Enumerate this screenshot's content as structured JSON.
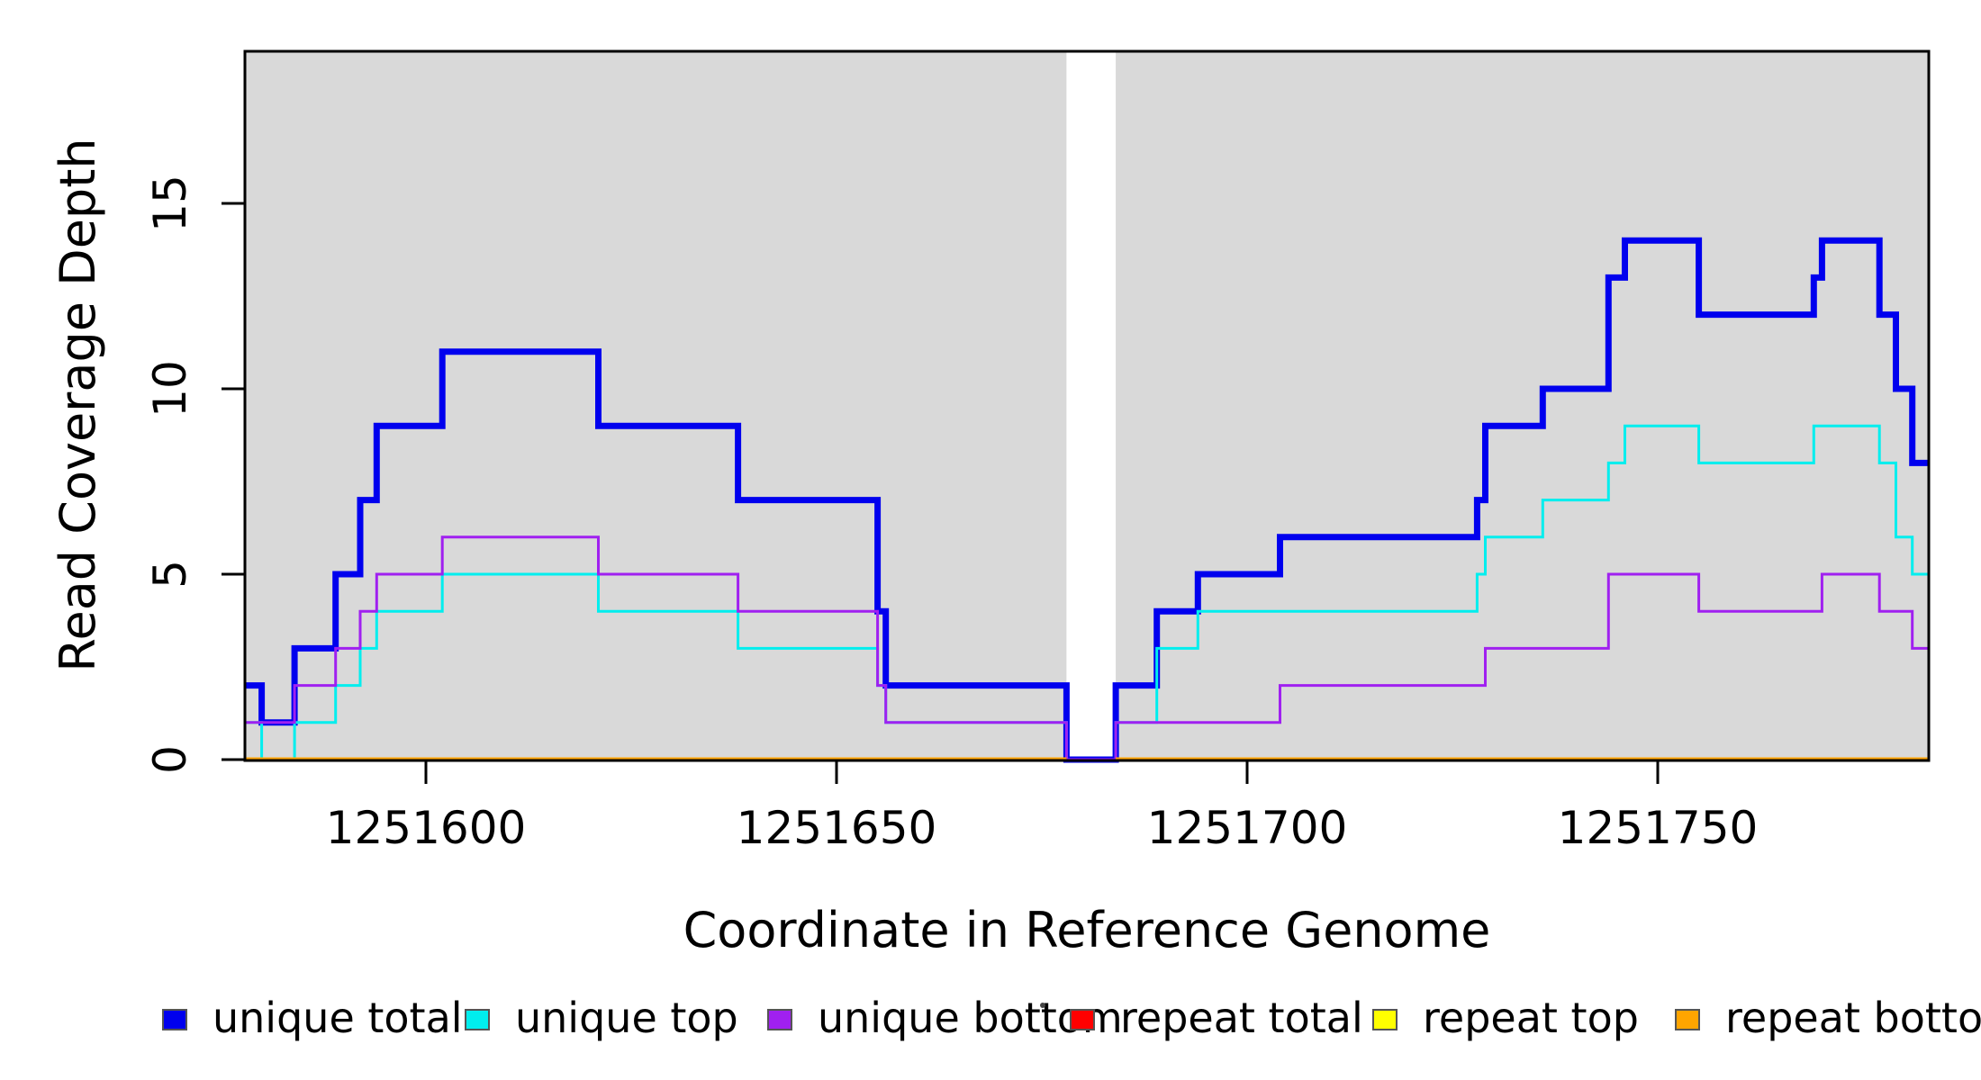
{
  "figure": {
    "background": "#FFFFFF",
    "panel_background": "#D9D9D9",
    "axis_color": "#000000",
    "tick_label_color": "#000000"
  },
  "chart_data": {
    "type": "line",
    "subtype": "step",
    "title": "",
    "xlabel": "Coordinate in Reference Genome",
    "ylabel": "Read Coverage Depth",
    "xlim": [
      1251578,
      1251783
    ],
    "ylim": [
      0,
      19.1
    ],
    "x_ticks": [
      1251600,
      1251650,
      1251700,
      1251750
    ],
    "y_ticks": [
      0,
      5,
      10,
      15
    ],
    "grid": false,
    "legend_position": "bottom",
    "gap_region": {
      "x_start": 1251678,
      "x_end": 1251684,
      "color": "#FFFFFF"
    },
    "series": [
      {
        "name": "unique total",
        "color": "#0000EE",
        "line_width": 7,
        "segments": [
          {
            "steps": [
              [
                1251578,
                2
              ],
              [
                1251580,
                1
              ],
              [
                1251584,
                3
              ],
              [
                1251589,
                5
              ],
              [
                1251592,
                7
              ],
              [
                1251594,
                9
              ],
              [
                1251602,
                11
              ],
              [
                1251621,
                9
              ],
              [
                1251638,
                7
              ],
              [
                1251655,
                4
              ],
              [
                1251656,
                2
              ],
              [
                1251678,
                0
              ],
              [
                1251684,
                2
              ],
              [
                1251689,
                4
              ],
              [
                1251694,
                5
              ],
              [
                1251704,
                6
              ],
              [
                1251728,
                7
              ],
              [
                1251729,
                9
              ],
              [
                1251736,
                10
              ],
              [
                1251744,
                13
              ],
              [
                1251746,
                14
              ],
              [
                1251755,
                12
              ],
              [
                1251769,
                13
              ],
              [
                1251770,
                14
              ],
              [
                1251777,
                12
              ],
              [
                1251779,
                10
              ],
              [
                1251781,
                8
              ]
            ],
            "x_end": 1251783
          }
        ]
      },
      {
        "name": "unique top",
        "color": "#00EEEE",
        "line_width": 3,
        "segments": [
          {
            "steps": [
              [
                1251578,
                1
              ],
              [
                1251580,
                0
              ],
              [
                1251584,
                1
              ],
              [
                1251589,
                2
              ],
              [
                1251592,
                3
              ],
              [
                1251594,
                4
              ],
              [
                1251602,
                5
              ],
              [
                1251621,
                4
              ],
              [
                1251638,
                3
              ],
              [
                1251655,
                2
              ],
              [
                1251656,
                1
              ],
              [
                1251678,
                0
              ],
              [
                1251684,
                1
              ],
              [
                1251689,
                3
              ],
              [
                1251694,
                4
              ],
              [
                1251728,
                5
              ],
              [
                1251729,
                6
              ],
              [
                1251736,
                7
              ],
              [
                1251744,
                8
              ],
              [
                1251746,
                9
              ],
              [
                1251755,
                8
              ],
              [
                1251769,
                9
              ],
              [
                1251777,
                8
              ],
              [
                1251779,
                6
              ],
              [
                1251781,
                5
              ]
            ],
            "x_end": 1251783
          }
        ]
      },
      {
        "name": "unique bottom",
        "color": "#A020F0",
        "line_width": 3,
        "segments": [
          {
            "steps": [
              [
                1251578,
                1
              ],
              [
                1251584,
                2
              ],
              [
                1251589,
                3
              ],
              [
                1251592,
                4
              ],
              [
                1251594,
                5
              ],
              [
                1251602,
                6
              ],
              [
                1251621,
                5
              ],
              [
                1251638,
                4
              ],
              [
                1251655,
                2
              ],
              [
                1251656,
                1
              ],
              [
                1251678,
                0
              ],
              [
                1251684,
                1
              ],
              [
                1251704,
                2
              ],
              [
                1251729,
                3
              ],
              [
                1251744,
                5
              ],
              [
                1251755,
                4
              ],
              [
                1251770,
                5
              ],
              [
                1251777,
                4
              ],
              [
                1251781,
                3
              ]
            ],
            "x_end": 1251783
          }
        ]
      },
      {
        "name": "repeat total",
        "color": "#FF0000",
        "line_width": 3,
        "segments": [
          {
            "steps": [
              [
                1251578,
                0
              ]
            ],
            "x_end": 1251678
          },
          {
            "steps": [
              [
                1251684,
                0
              ]
            ],
            "x_end": 1251783
          }
        ]
      },
      {
        "name": "repeat top",
        "color": "#FFFF00",
        "line_width": 3,
        "segments": [
          {
            "steps": [
              [
                1251578,
                0
              ]
            ],
            "x_end": 1251678
          },
          {
            "steps": [
              [
                1251684,
                0
              ]
            ],
            "x_end": 1251783
          }
        ]
      },
      {
        "name": "repeat bottom",
        "color": "#FFA500",
        "line_width": 5,
        "segments": [
          {
            "steps": [
              [
                1251578,
                0
              ]
            ],
            "x_end": 1251678
          },
          {
            "steps": [
              [
                1251684,
                0
              ]
            ],
            "x_end": 1251783
          }
        ]
      }
    ]
  },
  "legend": {
    "items": [
      {
        "label": "unique total",
        "color": "#0000EE"
      },
      {
        "label": "unique top",
        "color": "#00EEEE"
      },
      {
        "label": "unique bottom",
        "color": "#A020F0"
      },
      {
        "label": "repeat total",
        "color": "#FF0000"
      },
      {
        "label": "repeat top",
        "color": "#FFFF00"
      },
      {
        "label": "repeat bottom",
        "color": "#FFA500"
      }
    ]
  }
}
